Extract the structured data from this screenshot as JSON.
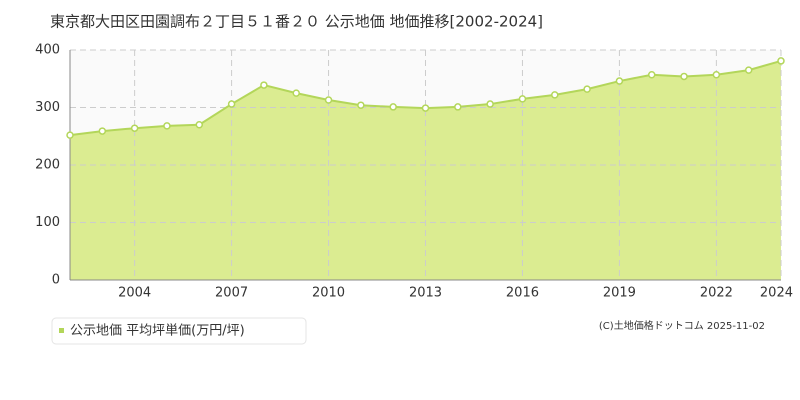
{
  "chart_data": {
    "type": "area",
    "title": "東京都大田区田園調布２丁目５１番２０ 公示地価 地価推移[2002-2024]",
    "x": [
      2002,
      2003,
      2004,
      2005,
      2006,
      2007,
      2008,
      2009,
      2010,
      2011,
      2012,
      2013,
      2014,
      2015,
      2016,
      2017,
      2018,
      2019,
      2020,
      2021,
      2022,
      2023,
      2024
    ],
    "series": [
      {
        "name": "公示地価 平均坪単価(万円/坪)",
        "color": "#b3d65a",
        "values": [
          252,
          259,
          264,
          268,
          270,
          306,
          339,
          325,
          313,
          304,
          301,
          299,
          301,
          306,
          315,
          322,
          332,
          346,
          357,
          354,
          357,
          365,
          381
        ]
      }
    ],
    "xlim": [
      2002,
      2024
    ],
    "xticks": [
      2004,
      2007,
      2010,
      2013,
      2016,
      2019,
      2022,
      2024
    ],
    "ylim": [
      0,
      400
    ],
    "yticks": [
      0,
      100,
      200,
      300,
      400
    ],
    "grid": true,
    "source": "(C)土地価格ドットコム 2025-11-02"
  }
}
